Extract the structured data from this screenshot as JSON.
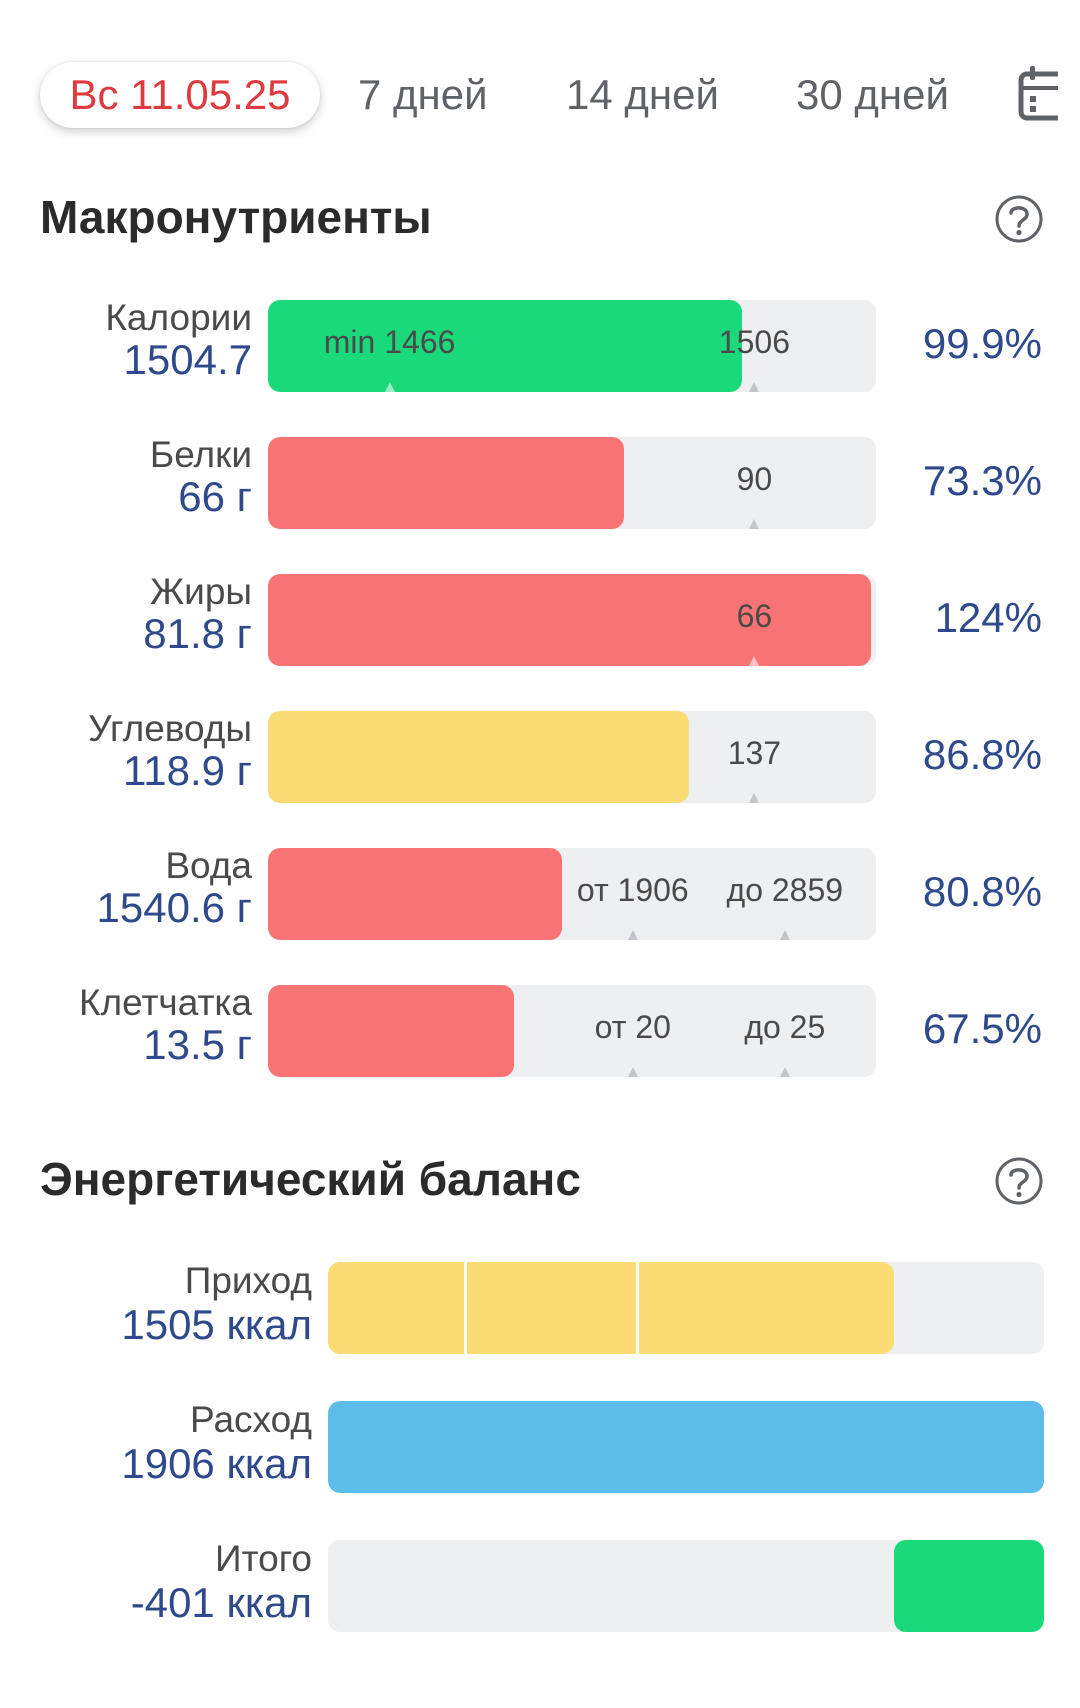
{
  "colors": {
    "accent_red": "#e0393e",
    "value_blue": "#2e4a8c",
    "green": "#1ad97a",
    "red": "#f87474",
    "yellow": "#fbdc74",
    "blue": "#5dbde9",
    "track": "#eeeff1"
  },
  "tabs": [
    {
      "label": "Вс 11.05.25",
      "active": true
    },
    {
      "label": "7 дней"
    },
    {
      "label": "14 дней"
    },
    {
      "label": "30 дней"
    }
  ],
  "calendar_icon": "calendar-icon",
  "macros": {
    "title": "Макронутриенты",
    "help_icon": "help-circle-icon",
    "rows": [
      {
        "name": "Калории",
        "value": "1504.7",
        "percent": "99.9%",
        "fill": 0.78,
        "color": "#1ad97a",
        "markers": [
          {
            "text": "min 1466",
            "pos": 0.2
          },
          {
            "text": "1506",
            "pos": 0.8
          }
        ]
      },
      {
        "name": "Белки",
        "value": "66 г",
        "percent": "73.3%",
        "fill": 0.585,
        "color": "#f87474",
        "markers": [
          {
            "text": "90",
            "pos": 0.8
          }
        ]
      },
      {
        "name": "Жиры",
        "value": "81.8 г",
        "percent": "124%",
        "fill": 0.992,
        "color": "#f87474",
        "markers": [
          {
            "text": "66",
            "pos": 0.8
          }
        ]
      },
      {
        "name": "Углеводы",
        "value": "118.9 г",
        "percent": "86.8%",
        "fill": 0.693,
        "color": "#fbdc74",
        "markers": [
          {
            "text": "137",
            "pos": 0.8
          }
        ]
      },
      {
        "name": "Вода",
        "value": "1540.6 г",
        "percent": "80.8%",
        "fill": 0.484,
        "color": "#f87474",
        "markers": [
          {
            "text": "от 1906",
            "pos": 0.6
          },
          {
            "text": "до 2859",
            "pos": 0.85
          }
        ]
      },
      {
        "name": "Клетчатка",
        "value": "13.5 г",
        "percent": "67.5%",
        "fill": 0.404,
        "color": "#f87474",
        "markers": [
          {
            "text": "от 20",
            "pos": 0.6
          },
          {
            "text": "до 25",
            "pos": 0.85
          }
        ]
      }
    ]
  },
  "energy": {
    "title": "Энергетический баланс",
    "help_icon": "help-circle-icon",
    "rows": [
      {
        "name": "Приход",
        "value": "1505 ккал",
        "start": 0.0,
        "fill": 0.79,
        "color": "#fbdc74",
        "dividers": [
          0.19,
          0.43
        ]
      },
      {
        "name": "Расход",
        "value": "1906 ккал",
        "start": 0.0,
        "fill": 1.0,
        "color": "#5dbde9",
        "dividers": []
      },
      {
        "name": "Итого",
        "value": "-401 ккал",
        "start": 0.79,
        "fill": 0.21,
        "color": "#1ad97a",
        "dividers": []
      }
    ]
  }
}
